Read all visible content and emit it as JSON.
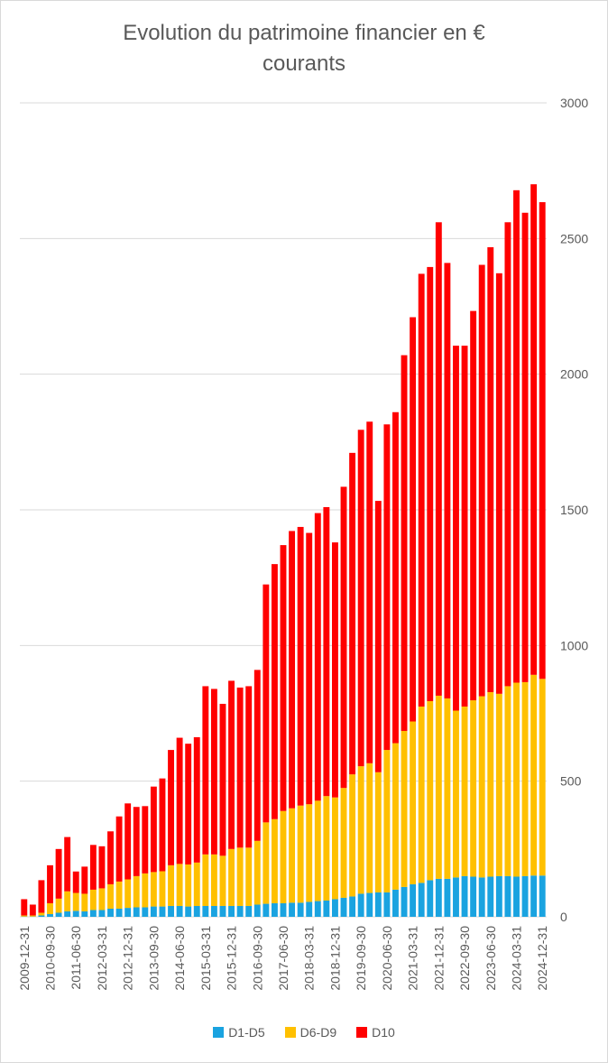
{
  "title": "Evolution du patrimoine financier en € courants",
  "colors": {
    "D1-D5": "#1aa3e0",
    "D6-D9": "#ffc000",
    "D10": "#ff0000",
    "grid": "#d9d9d9",
    "text": "#595959"
  },
  "chart_data": {
    "type": "bar",
    "stacked": true,
    "title": "Evolution du patrimoine financier en € courants",
    "y_axis": {
      "min": 0,
      "max": 3000,
      "ticks": [
        0,
        500,
        1000,
        1500,
        2000,
        2500,
        3000
      ],
      "position": "right"
    },
    "grid": true,
    "legend_position": "bottom",
    "categories": [
      "2009-12-31",
      "2010-03-31",
      "2010-06-30",
      "2010-09-30",
      "2010-12-31",
      "2011-03-31",
      "2011-06-30",
      "2011-09-30",
      "2011-12-31",
      "2012-03-31",
      "2012-06-30",
      "2012-09-30",
      "2012-12-31",
      "2013-03-31",
      "2013-06-30",
      "2013-09-30",
      "2013-12-31",
      "2014-03-31",
      "2014-06-30",
      "2014-09-30",
      "2014-12-31",
      "2015-03-31",
      "2015-06-30",
      "2015-09-30",
      "2015-12-31",
      "2016-03-31",
      "2016-06-30",
      "2016-09-30",
      "2016-12-31",
      "2017-03-31",
      "2017-06-30",
      "2017-09-30",
      "2017-12-31",
      "2018-03-31",
      "2018-06-30",
      "2018-09-30",
      "2018-12-31",
      "2019-03-31",
      "2019-06-30",
      "2019-09-30",
      "2019-12-31",
      "2020-03-31",
      "2020-06-30",
      "2020-09-30",
      "2020-12-31",
      "2021-03-31",
      "2021-06-30",
      "2021-09-30",
      "2021-12-31",
      "2022-03-31",
      "2022-06-30",
      "2022-09-30",
      "2022-12-31",
      "2023-03-31",
      "2023-06-30",
      "2023-09-30",
      "2023-12-31",
      "2024-03-31",
      "2024-06-30",
      "2024-09-30",
      "2024-12-31"
    ],
    "x_tick_labels": [
      "2009-12-31",
      "2010-09-30",
      "2011-06-30",
      "2012-03-31",
      "2012-12-31",
      "2013-09-30",
      "2014-06-30",
      "2015-03-31",
      "2015-12-31",
      "2016-09-30",
      "2017-06-30",
      "2018-03-31",
      "2018-12-31",
      "2019-09-30",
      "2020-06-30",
      "2021-03-31",
      "2021-12-31",
      "2022-09-30",
      "2023-06-30",
      "2024-03-31",
      "2024-12-31"
    ],
    "series": [
      {
        "name": "D1-D5",
        "values": [
          1,
          1,
          5,
          10,
          15,
          20,
          22,
          20,
          25,
          25,
          30,
          30,
          33,
          35,
          35,
          38,
          38,
          40,
          40,
          38,
          40,
          40,
          40,
          40,
          40,
          40,
          40,
          45,
          48,
          50,
          50,
          52,
          52,
          55,
          58,
          60,
          65,
          70,
          75,
          85,
          88,
          90,
          90,
          100,
          110,
          120,
          125,
          135,
          140,
          140,
          145,
          150,
          148,
          145,
          148,
          150,
          150,
          148,
          150,
          152,
          152
        ]
      },
      {
        "name": "D6-D9",
        "values": [
          4,
          4,
          10,
          40,
          52,
          74,
          66,
          65,
          75,
          80,
          90,
          100,
          105,
          115,
          125,
          127,
          130,
          150,
          155,
          155,
          160,
          190,
          190,
          185,
          210,
          215,
          215,
          235,
          300,
          310,
          340,
          348,
          358,
          360,
          370,
          385,
          375,
          405,
          450,
          470,
          478,
          443,
          525,
          540,
          575,
          600,
          650,
          660,
          675,
          665,
          615,
          625,
          650,
          668,
          680,
          672,
          700,
          715,
          715,
          740,
          725
        ]
      },
      {
        "name": "D10",
        "values": [
          60,
          40,
          120,
          140,
          183,
          200,
          79,
          100,
          165,
          155,
          195,
          240,
          280,
          255,
          248,
          315,
          342,
          425,
          465,
          445,
          462,
          620,
          610,
          560,
          620,
          590,
          595,
          630,
          877,
          940,
          980,
          1022,
          1027,
          1000,
          1060,
          1065,
          940,
          1110,
          1185,
          1240,
          1259,
          1000,
          1200,
          1220,
          1385,
          1490,
          1595,
          1600,
          1745,
          1605,
          1345,
          1330,
          1435,
          1590,
          1640,
          1550,
          1710,
          1815,
          1730,
          1808,
          1757
        ]
      }
    ]
  }
}
